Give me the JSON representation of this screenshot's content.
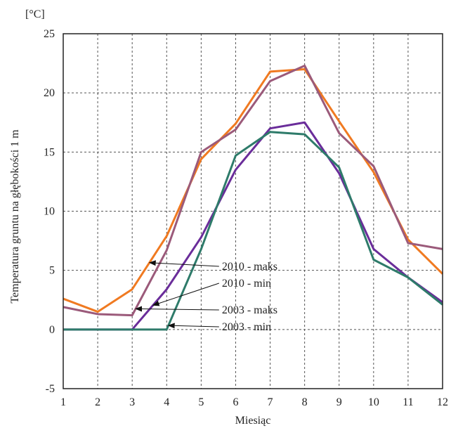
{
  "chart_data": {
    "type": "line",
    "xlabel": "Miesiąc",
    "ylabel": "Temperatura gruntu na głębokości 1 m",
    "yunit": "[°C]",
    "xlim": [
      1,
      12
    ],
    "ylim": [
      -5,
      25
    ],
    "xticks": [
      1,
      2,
      3,
      4,
      5,
      6,
      7,
      8,
      9,
      10,
      11,
      12
    ],
    "yticks": [
      -5,
      0,
      5,
      10,
      15,
      20,
      25
    ],
    "grid": true,
    "x": [
      1,
      2,
      3,
      4,
      5,
      6,
      7,
      8,
      9,
      10,
      11,
      12
    ],
    "series": [
      {
        "name": "2010 - maks",
        "color": "#f07a21",
        "values": [
          2.6,
          1.5,
          3.4,
          7.9,
          14.4,
          17.4,
          21.8,
          22.0,
          17.6,
          13.3,
          7.6,
          4.7
        ]
      },
      {
        "name": "2010 - min",
        "color": "#6a2d9a",
        "values": [
          0.0,
          0.0,
          0.0,
          3.4,
          7.8,
          13.5,
          17.0,
          17.5,
          13.2,
          6.8,
          4.4,
          2.3
        ]
      },
      {
        "name": "2003 - maks",
        "color": "#9b5a7a",
        "values": [
          1.9,
          1.3,
          1.2,
          6.7,
          15.0,
          16.9,
          21.0,
          22.3,
          16.6,
          13.8,
          7.3,
          6.8
        ]
      },
      {
        "name": "2003 - min",
        "color": "#2e7b6a",
        "values": [
          0.0,
          0.0,
          0.0,
          0.0,
          6.8,
          14.7,
          16.7,
          16.5,
          13.7,
          5.9,
          4.4,
          2.1
        ]
      }
    ],
    "annotations": [
      {
        "text": "2010 - maks",
        "series": 0,
        "x": 3.5
      },
      {
        "text": "2010 - min",
        "series": 1,
        "x": 3.6
      },
      {
        "text": "2003 - maks",
        "series": 2,
        "x": 3.1
      },
      {
        "text": "2003 - min",
        "series": 3,
        "x": 4.05
      }
    ]
  }
}
